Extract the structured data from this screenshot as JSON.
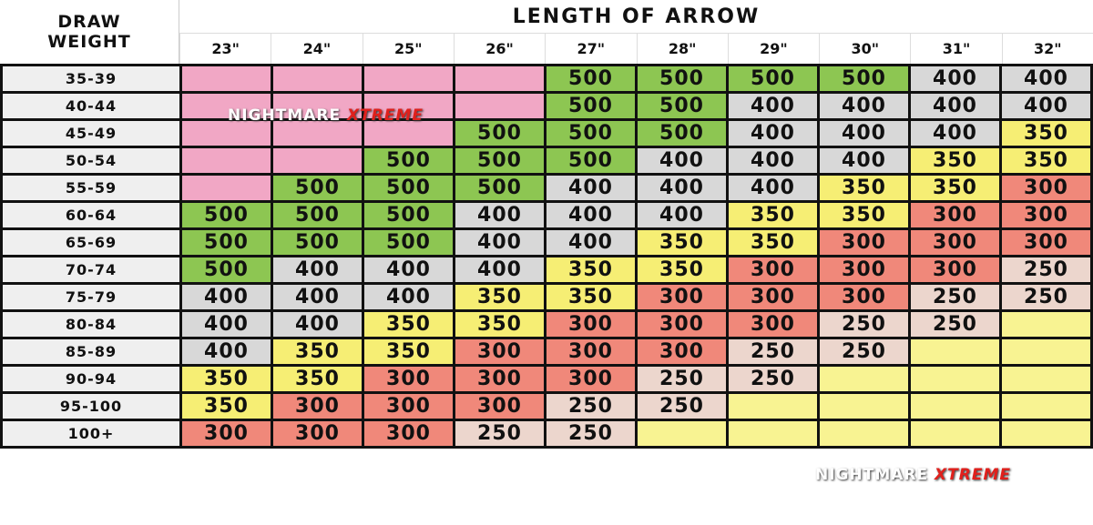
{
  "header": {
    "draw_line1": "DRAW",
    "draw_line2": "WEIGHT",
    "length_title": "LENGTH OF ARROW"
  },
  "columns": [
    "23\"",
    "24\"",
    "25\"",
    "26\"",
    "27\"",
    "28\"",
    "29\"",
    "30\"",
    "31\"",
    "32\""
  ],
  "colors": {
    "P": "#f1a7c5",
    "500": "#8dc652",
    "400": "#d8d8d8",
    "350": "#f6ee74",
    "300": "#f0887a",
    "250": "#ecd6cd",
    "Y": "#f8f392"
  },
  "rows": [
    {
      "weight": "35-39",
      "cells": [
        "P",
        "P",
        "P",
        "P",
        "500",
        "500",
        "500",
        "500",
        "400",
        "400"
      ]
    },
    {
      "weight": "40-44",
      "cells": [
        "P",
        "P",
        "P",
        "P",
        "500",
        "500",
        "400",
        "400",
        "400",
        "400"
      ]
    },
    {
      "weight": "45-49",
      "cells": [
        "P",
        "P",
        "P",
        "500",
        "500",
        "500",
        "400",
        "400",
        "400",
        "350"
      ]
    },
    {
      "weight": "50-54",
      "cells": [
        "P",
        "P",
        "500",
        "500",
        "500",
        "400",
        "400",
        "400",
        "350",
        "350"
      ]
    },
    {
      "weight": "55-59",
      "cells": [
        "P",
        "500",
        "500",
        "500",
        "400",
        "400",
        "400",
        "350",
        "350",
        "300"
      ]
    },
    {
      "weight": "60-64",
      "cells": [
        "500",
        "500",
        "500",
        "400",
        "400",
        "400",
        "350",
        "350",
        "300",
        "300"
      ]
    },
    {
      "weight": "65-69",
      "cells": [
        "500",
        "500",
        "500",
        "400",
        "400",
        "350",
        "350",
        "300",
        "300",
        "300"
      ]
    },
    {
      "weight": "70-74",
      "cells": [
        "500",
        "400",
        "400",
        "400",
        "350",
        "350",
        "300",
        "300",
        "300",
        "250"
      ]
    },
    {
      "weight": "75-79",
      "cells": [
        "400",
        "400",
        "400",
        "350",
        "350",
        "300",
        "300",
        "300",
        "250",
        "250"
      ]
    },
    {
      "weight": "80-84",
      "cells": [
        "400",
        "400",
        "350",
        "350",
        "300",
        "300",
        "300",
        "250",
        "250",
        "Y"
      ]
    },
    {
      "weight": "85-89",
      "cells": [
        "400",
        "350",
        "350",
        "300",
        "300",
        "300",
        "250",
        "250",
        "Y",
        "Y"
      ]
    },
    {
      "weight": "90-94",
      "cells": [
        "350",
        "350",
        "300",
        "300",
        "300",
        "250",
        "250",
        "Y",
        "Y",
        "Y"
      ]
    },
    {
      "weight": "95-100",
      "cells": [
        "350",
        "300",
        "300",
        "300",
        "250",
        "250",
        "Y",
        "Y",
        "Y",
        "Y"
      ]
    },
    {
      "weight": "100+",
      "cells": [
        "300",
        "300",
        "300",
        "250",
        "250",
        "Y",
        "Y",
        "Y",
        "Y",
        "Y"
      ]
    }
  ],
  "watermark": {
    "part1": "NIGHTMARE",
    "part2": "XTREME"
  }
}
